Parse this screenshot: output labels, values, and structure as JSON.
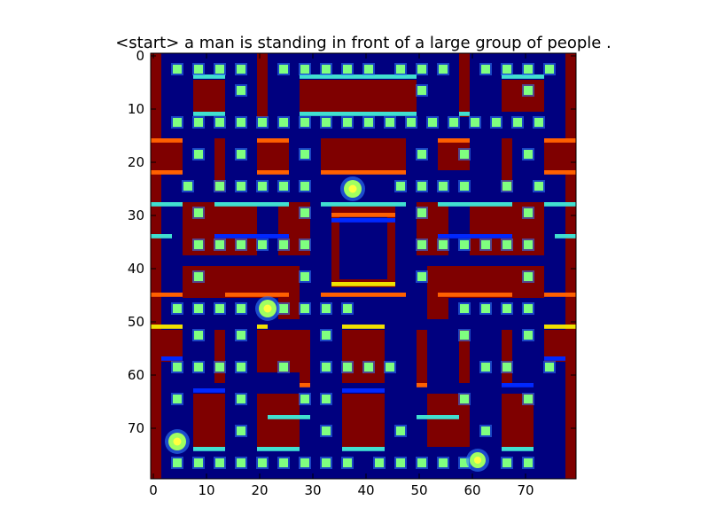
{
  "caption": "<start> a man is standing in front of a large group of people .",
  "grid": {
    "cols": 80,
    "rows": 80
  },
  "x_ticks": [
    "0",
    "10",
    "20",
    "30",
    "40",
    "50",
    "60",
    "70"
  ],
  "y_ticks": [
    "0",
    "10",
    "20",
    "30",
    "40",
    "50",
    "60",
    "70"
  ],
  "colors": {
    "background": "#00007f",
    "wall": "#7f0000",
    "pellet": "#7fff7f",
    "pellet_glow": "#2f7fff",
    "edge_cyan": "#40e0d0",
    "edge_yellow": "#f0e000",
    "edge_orange": "#ff6000",
    "edge_blue": "#0028ff",
    "sprite": "#a0ff60",
    "sprite_core": "#ffff40"
  },
  "pellet_rows_y": [
    3,
    13,
    25,
    36,
    48,
    59,
    77
  ],
  "sprites": [
    "ghost-sprite",
    "player-sprite",
    "ghost-sprite-left",
    "ghost-sprite-bottom"
  ]
}
